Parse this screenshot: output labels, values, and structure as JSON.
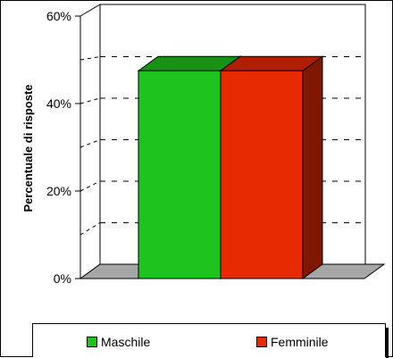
{
  "chart_data": {
    "type": "bar",
    "ylabel": "Percentuale di risposte",
    "yticks": [
      "0%",
      "20%",
      "40%",
      "60%"
    ],
    "ylim": [
      0,
      60
    ],
    "grid": true,
    "legend_position": "bottom",
    "series": [
      {
        "name": "Maschile",
        "value": 47.5,
        "color": "#1ec31e"
      },
      {
        "name": "Femminile",
        "value": 47.5,
        "color": "#e82a00"
      }
    ]
  }
}
